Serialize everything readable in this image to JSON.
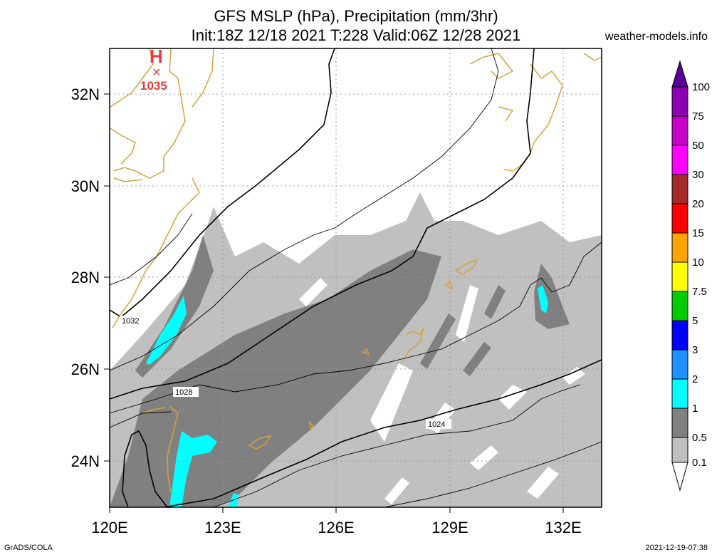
{
  "title": {
    "line1": "GFS MSLP (hPa), Precipitation (mm/3hr)",
    "line2": "Init:18Z 12/18 2021 T:228 Valid:06Z 12/28 2021"
  },
  "site": "weather-models.info",
  "footer": {
    "left": "GrADS/COLA",
    "right": "2021-12-19-07:38"
  },
  "map": {
    "lon_ticks": [
      "120E",
      "123E",
      "126E",
      "129E",
      "132E"
    ],
    "lat_ticks": [
      "32N",
      "30N",
      "28N",
      "26N",
      "24N"
    ],
    "lon_range": [
      120,
      133
    ],
    "lat_range": [
      23,
      33
    ]
  },
  "high": {
    "symbol": "H",
    "marker": "×",
    "value": "1035"
  },
  "isobars": {
    "a": "1032",
    "b": "1028",
    "c": "1024"
  },
  "colorbar": {
    "labels": [
      "100",
      "75",
      "50",
      "30",
      "20",
      "15",
      "10",
      "7.5",
      "5",
      "3",
      "2",
      "1",
      "0.5",
      "0.1"
    ],
    "colors": {
      "c100": "#5a0096",
      "c75": "#8c00b4",
      "c50": "#c800c8",
      "c30": "#ff00ff",
      "c20": "#a52a2a",
      "c15": "#ff0000",
      "c10": "#ffa500",
      "c7_5": "#ffff00",
      "c5": "#00cc00",
      "c3": "#0000ff",
      "c2": "#1e90ff",
      "c1": "#00ffff",
      "c0_5": "#808080",
      "c0_1": "#c0c0c0"
    }
  }
}
